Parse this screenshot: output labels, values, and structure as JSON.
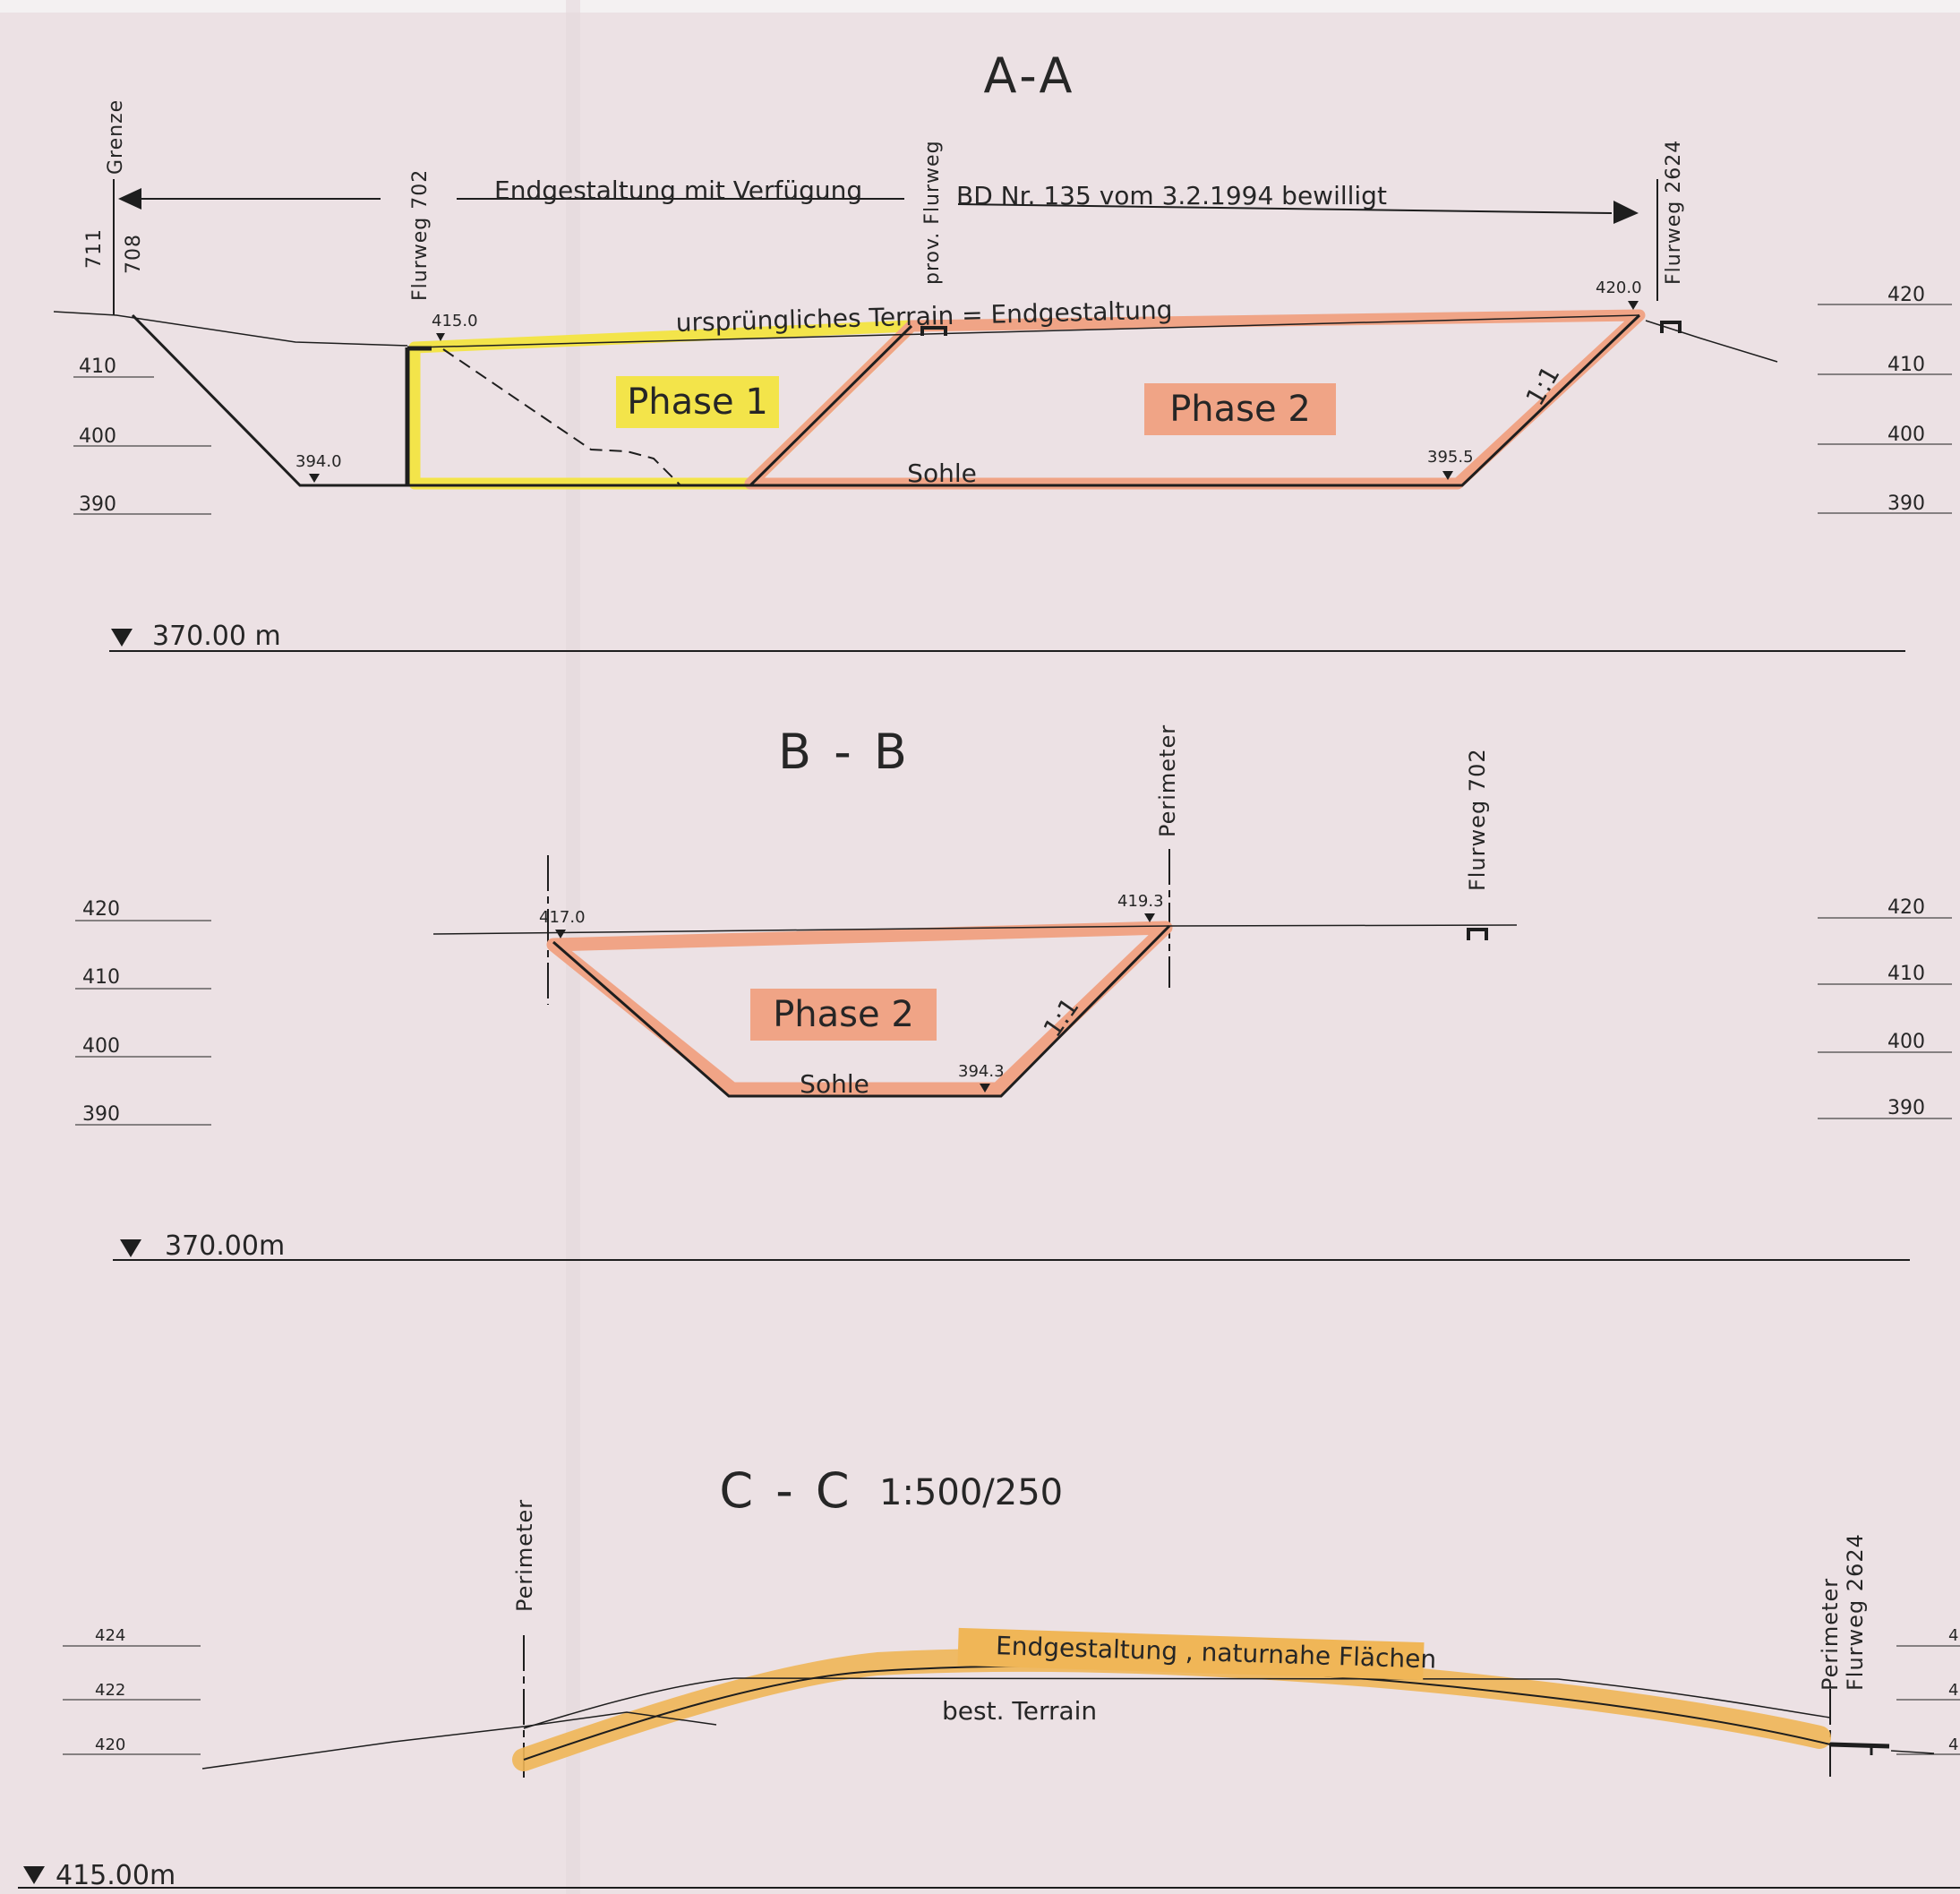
{
  "colors": {
    "paper": "#ece1e4",
    "phase1_yellow": "#f3e44a",
    "phase2_salmon": "#f0a486",
    "endgestaltung_orange": "#f0b657",
    "ink": "#1e1e1e"
  },
  "section_aa": {
    "title": "A-A",
    "grenze": "Grenze",
    "parcel_top": "711",
    "parcel_bottom": "708",
    "flurweg_702": "Flurweg  702",
    "prov_flurweg": "prov. Flurweg",
    "flurweg_2624": "Flurweg  2624",
    "arrow_text_left": "Endgestaltung mit Verfügung",
    "arrow_text_right": "BD  Nr. 135  vom 3.2.1994  bewilligt",
    "terrain_label": "ursprüngliches  Terrain  =  Endgestaltung",
    "phase1": "Phase  1",
    "phase2": "Phase  2",
    "sohle": "Sohle",
    "slope": "1:1",
    "elev_415": "415.0",
    "elev_420": "420.0",
    "elev_394": "394.0",
    "elev_3955": "395.5",
    "scale_left": [
      "410",
      "400",
      "390"
    ],
    "scale_right": [
      "420",
      "410",
      "400",
      "390"
    ],
    "datum": "370.00 m"
  },
  "section_bb": {
    "title": "B - B",
    "perimeter": "Perimeter",
    "flurweg_702": "Flurweg  702",
    "phase2": "Phase  2",
    "sohle": "Sohle",
    "slope": "1:1",
    "elev_417": "417.0",
    "elev_4193": "419.3",
    "elev_3943": "394.3",
    "scale_left": [
      "420",
      "410",
      "400",
      "390"
    ],
    "scale_right": [
      "420",
      "410",
      "400",
      "390"
    ],
    "datum": "370.00m"
  },
  "section_cc": {
    "title": "C - C",
    "scale": "1:500/250",
    "perimeter_left": "Perimeter",
    "perimeter_right": "Perimeter",
    "flurweg_2624": "Flurweg 2624",
    "endgestaltung": "Endgestaltung , naturnahe Flächen",
    "best_terrain": "best. Terrain",
    "scale_left": [
      "424",
      "422",
      "420"
    ],
    "scale_right": [
      "4",
      "4",
      "4"
    ],
    "datum": "415.00m"
  }
}
